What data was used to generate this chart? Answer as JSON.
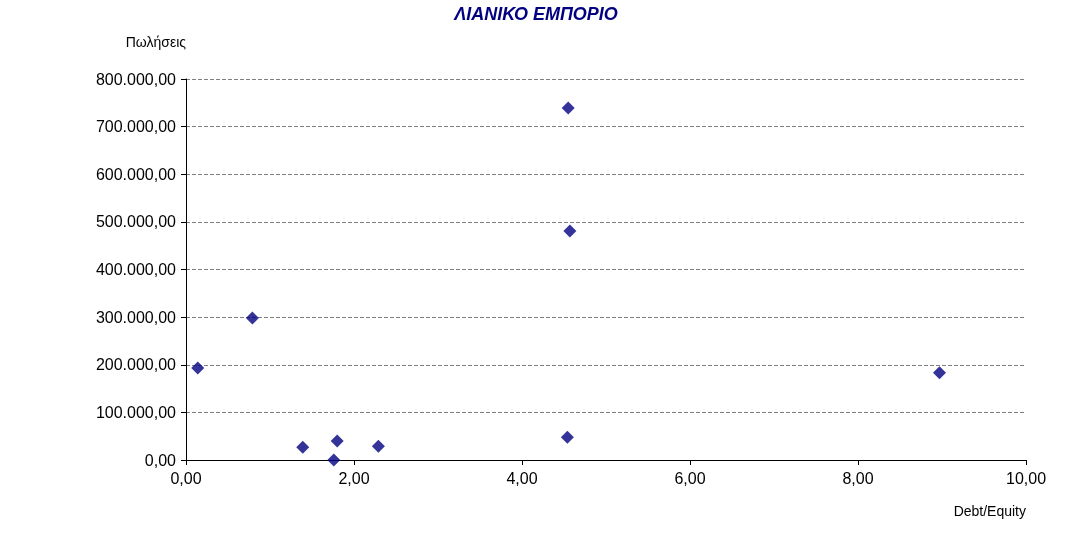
{
  "chart_data": {
    "type": "scatter",
    "title": "ΛΙΑΝΙΚΟ ΕΜΠΟΡΙΟ",
    "xlabel": "Debt/Equity",
    "ylabel": "Πωλήσεις",
    "x": [
      0.14,
      0.79,
      1.39,
      1.76,
      1.8,
      2.29,
      4.55,
      4.57,
      4.54,
      8.97
    ],
    "values": [
      193000,
      298000,
      27000,
      0,
      40000,
      29000,
      739000,
      481000,
      48000,
      183000
    ],
    "color": "#000080",
    "marker": "diamond",
    "xlim": [
      0,
      10
    ],
    "xticks": [
      {
        "value": 0,
        "label": "0,00"
      },
      {
        "value": 2,
        "label": "2,00"
      },
      {
        "value": 4,
        "label": "4,00"
      },
      {
        "value": 6,
        "label": "6,00"
      },
      {
        "value": 8,
        "label": "8,00"
      },
      {
        "value": 10,
        "label": "10,00"
      }
    ],
    "ylim": [
      0,
      800000
    ],
    "yticks": [
      {
        "value": 0,
        "label": "0,00"
      },
      {
        "value": 100000,
        "label": "100.000,00"
      },
      {
        "value": 200000,
        "label": "200.000,00"
      },
      {
        "value": 300000,
        "label": "300.000,00"
      },
      {
        "value": 400000,
        "label": "400.000,00"
      },
      {
        "value": 500000,
        "label": "500.000,00"
      },
      {
        "value": 600000,
        "label": "600.000,00"
      },
      {
        "value": 700000,
        "label": "700.000,00"
      },
      {
        "value": 800000,
        "label": "800.000,00"
      }
    ],
    "grid": "y"
  }
}
